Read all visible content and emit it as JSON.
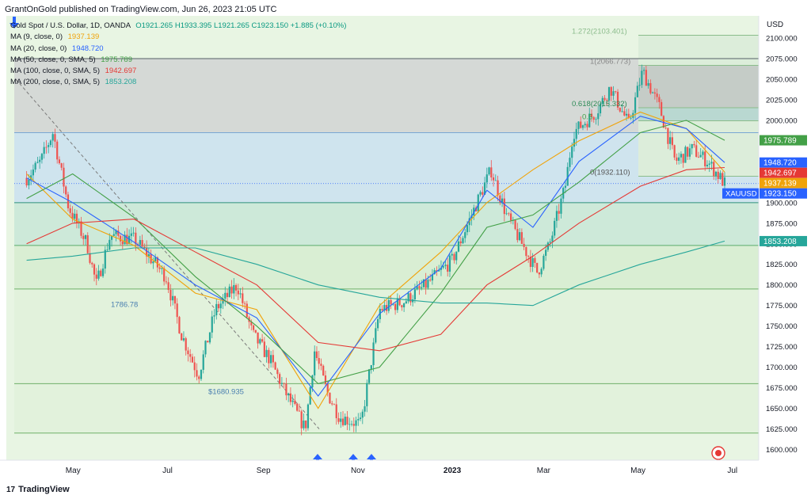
{
  "header": {
    "publisher_line": "GrantOnGold published on TradingView.com, Jun 26, 2023 21:05 UTC"
  },
  "legend": {
    "symbol_line": "Gold Spot / U.S. Dollar, 1D, OANDA",
    "ohlc": "O1921.265  H1933.395  L1921.265  C1923.150  +1.885 (+0.10%)",
    "mas": [
      {
        "label": "MA (9, close, 0)",
        "value": "1937.139",
        "color": "#f0a30a"
      },
      {
        "label": "MA (20, close, 0)",
        "value": "1948.720",
        "color": "#2962ff"
      },
      {
        "label": "MA (50, close, 0, SMA, 5)",
        "value": "1975.789",
        "color": "#43a047"
      },
      {
        "label": "MA (100, close, 0, SMA, 5)",
        "value": "1942.697",
        "color": "#e53935"
      },
      {
        "label": "MA (200, close, 0, SMA, 5)",
        "value": "1853.208",
        "color": "#26a69a"
      }
    ]
  },
  "footer": {
    "brand": "TradingView",
    "logo_mark": "17"
  },
  "axis": {
    "currency": "USD"
  },
  "chart_data": {
    "type": "candlestick",
    "title": "Gold Spot / U.S. Dollar, 1D, OANDA",
    "y_ticks": [
      1600,
      1625,
      1650,
      1675,
      1700,
      1725,
      1750,
      1775,
      1800,
      1825,
      1850,
      1875,
      1900,
      1925,
      1950,
      1975,
      2000,
      2025,
      2050,
      2075,
      2100
    ],
    "ylim": [
      1587,
      2127
    ],
    "x_ticks": [
      "May",
      "Jul",
      "Sep",
      "Nov",
      "2023",
      "Mar",
      "May",
      "Jul"
    ],
    "price_labels": [
      {
        "text": "1975.789",
        "color": "#43a047"
      },
      {
        "text": "1948.720",
        "color": "#2962ff"
      },
      {
        "text": "1942.697",
        "color": "#e53935"
      },
      {
        "text": "1937.139",
        "color": "#f0a30a"
      },
      {
        "text": "1923.150",
        "color": "#2962ff",
        "symbol": "XAUUSD"
      },
      {
        "text": "1853.208",
        "color": "#26a69a"
      }
    ],
    "annotations": [
      {
        "text": "1786.78",
        "price": 1786.78
      },
      {
        "text": "$1680.935",
        "price": 1680.935
      },
      {
        "text": "1.272(2103.401)",
        "price": 2103.401
      },
      {
        "text": "1(2066.773)",
        "price": 2066.773
      },
      {
        "text": "0.618(2015.332)",
        "price": 2015.332
      },
      {
        "text": "0.5",
        "price": 1999.4
      },
      {
        "text": "0(1932.110)",
        "price": 1932.11
      }
    ],
    "horizontal_levels": [
      2075,
      1985,
      1900,
      1848,
      1795,
      1680,
      1620
    ],
    "price_path": [
      {
        "d": "2022-04-01",
        "p": 1930
      },
      {
        "d": "2022-04-10",
        "p": 1950
      },
      {
        "d": "2022-04-18",
        "p": 1985
      },
      {
        "d": "2022-04-28",
        "p": 1895
      },
      {
        "d": "2022-05-10",
        "p": 1850
      },
      {
        "d": "2022-05-16",
        "p": 1800
      },
      {
        "d": "2022-05-25",
        "p": 1860
      },
      {
        "d": "2022-06-10",
        "p": 1855
      },
      {
        "d": "2022-06-30",
        "p": 1810
      },
      {
        "d": "2022-07-10",
        "p": 1740
      },
      {
        "d": "2022-07-21",
        "p": 1690
      },
      {
        "d": "2022-08-01",
        "p": 1770
      },
      {
        "d": "2022-08-15",
        "p": 1800
      },
      {
        "d": "2022-08-25",
        "p": 1740
      },
      {
        "d": "2022-09-05",
        "p": 1710
      },
      {
        "d": "2022-09-15",
        "p": 1670
      },
      {
        "d": "2022-09-28",
        "p": 1625
      },
      {
        "d": "2022-10-04",
        "p": 1720
      },
      {
        "d": "2022-10-12",
        "p": 1670
      },
      {
        "d": "2022-10-20",
        "p": 1640
      },
      {
        "d": "2022-11-03",
        "p": 1630
      },
      {
        "d": "2022-11-15",
        "p": 1770
      },
      {
        "d": "2022-12-01",
        "p": 1780
      },
      {
        "d": "2022-12-15",
        "p": 1800
      },
      {
        "d": "2023-01-01",
        "p": 1830
      },
      {
        "d": "2023-01-26",
        "p": 1940
      },
      {
        "d": "2023-02-05",
        "p": 1885
      },
      {
        "d": "2023-02-25",
        "p": 1815
      },
      {
        "d": "2023-03-05",
        "p": 1850
      },
      {
        "d": "2023-03-15",
        "p": 1920
      },
      {
        "d": "2023-03-20",
        "p": 1985
      },
      {
        "d": "2023-04-04",
        "p": 2010
      },
      {
        "d": "2023-04-13",
        "p": 2040
      },
      {
        "d": "2023-04-25",
        "p": 1995
      },
      {
        "d": "2023-05-04",
        "p": 2060
      },
      {
        "d": "2023-05-15",
        "p": 2015
      },
      {
        "d": "2023-05-25",
        "p": 1950
      },
      {
        "d": "2023-06-05",
        "p": 1965
      },
      {
        "d": "2023-06-15",
        "p": 1950
      },
      {
        "d": "2023-06-26",
        "p": 1923
      }
    ],
    "ma_series": [
      {
        "name": "MA 9",
        "color": "#f0a30a",
        "values": [
          [
            0,
            1935
          ],
          [
            30,
            1880
          ],
          [
            70,
            1848
          ],
          [
            110,
            1790
          ],
          [
            150,
            1770
          ],
          [
            190,
            1650
          ],
          [
            230,
            1775
          ],
          [
            270,
            1840
          ],
          [
            300,
            1900
          ],
          [
            330,
            1940
          ],
          [
            360,
            1975
          ],
          [
            400,
            2010
          ],
          [
            430,
            1990
          ],
          [
            455,
            1937
          ]
        ]
      },
      {
        "name": "MA 20",
        "color": "#2962ff",
        "values": [
          [
            0,
            1930
          ],
          [
            30,
            1900
          ],
          [
            70,
            1852
          ],
          [
            110,
            1800
          ],
          [
            150,
            1760
          ],
          [
            190,
            1665
          ],
          [
            230,
            1765
          ],
          [
            270,
            1820
          ],
          [
            300,
            1915
          ],
          [
            330,
            1870
          ],
          [
            360,
            1950
          ],
          [
            400,
            2005
          ],
          [
            430,
            1990
          ],
          [
            455,
            1948.7
          ]
        ]
      },
      {
        "name": "MA 50",
        "color": "#43a047",
        "values": [
          [
            0,
            1905
          ],
          [
            30,
            1935
          ],
          [
            70,
            1882
          ],
          [
            110,
            1810
          ],
          [
            150,
            1750
          ],
          [
            190,
            1680
          ],
          [
            230,
            1700
          ],
          [
            270,
            1790
          ],
          [
            300,
            1870
          ],
          [
            330,
            1885
          ],
          [
            360,
            1925
          ],
          [
            400,
            1985
          ],
          [
            430,
            2000
          ],
          [
            455,
            1975.8
          ]
        ]
      },
      {
        "name": "MA 100",
        "color": "#e53935",
        "values": [
          [
            0,
            1850
          ],
          [
            30,
            1875
          ],
          [
            70,
            1880
          ],
          [
            110,
            1840
          ],
          [
            150,
            1800
          ],
          [
            190,
            1730
          ],
          [
            230,
            1720
          ],
          [
            270,
            1740
          ],
          [
            300,
            1800
          ],
          [
            330,
            1835
          ],
          [
            360,
            1875
          ],
          [
            400,
            1920
          ],
          [
            430,
            1940
          ],
          [
            455,
            1942.7
          ]
        ]
      },
      {
        "name": "MA 200",
        "color": "#26a69a",
        "values": [
          [
            0,
            1830
          ],
          [
            30,
            1835
          ],
          [
            70,
            1845
          ],
          [
            110,
            1845
          ],
          [
            150,
            1825
          ],
          [
            190,
            1800
          ],
          [
            230,
            1785
          ],
          [
            270,
            1778
          ],
          [
            300,
            1778
          ],
          [
            330,
            1775
          ],
          [
            360,
            1800
          ],
          [
            400,
            1825
          ],
          [
            430,
            1840
          ],
          [
            455,
            1853.2
          ]
        ]
      }
    ]
  }
}
